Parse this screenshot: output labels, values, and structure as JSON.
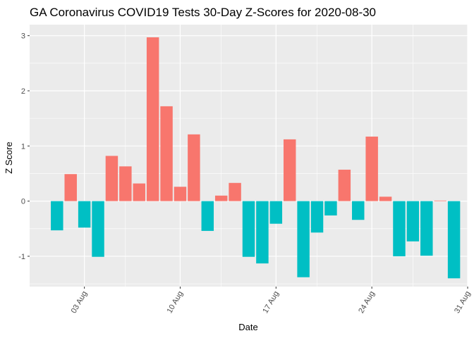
{
  "chart_data": {
    "type": "bar",
    "title": "GA Coronavirus COVID19 Tests 30-Day Z-Scores for 2020-08-30",
    "xlabel": "Date",
    "ylabel": "Z Score",
    "x_dates": [
      "2020-08-01",
      "2020-08-02",
      "2020-08-03",
      "2020-08-04",
      "2020-08-05",
      "2020-08-06",
      "2020-08-07",
      "2020-08-08",
      "2020-08-09",
      "2020-08-10",
      "2020-08-11",
      "2020-08-12",
      "2020-08-13",
      "2020-08-14",
      "2020-08-15",
      "2020-08-16",
      "2020-08-17",
      "2020-08-18",
      "2020-08-19",
      "2020-08-20",
      "2020-08-21",
      "2020-08-22",
      "2020-08-23",
      "2020-08-24",
      "2020-08-25",
      "2020-08-26",
      "2020-08-27",
      "2020-08-28",
      "2020-08-29",
      "2020-08-30"
    ],
    "values": [
      -0.53,
      0.49,
      -0.48,
      -1.01,
      0.82,
      0.63,
      0.32,
      2.97,
      1.72,
      0.26,
      1.21,
      -0.54,
      0.1,
      0.33,
      -1.01,
      -1.13,
      -0.41,
      1.12,
      -1.38,
      -0.57,
      -0.26,
      0.57,
      -0.34,
      1.17,
      0.08,
      -1.0,
      -0.73,
      -0.99,
      0.01,
      -1.4
    ],
    "x_ticks": [
      "03 Aug",
      "10 Aug",
      "17 Aug",
      "24 Aug",
      "31 Aug"
    ],
    "x_tick_dates": [
      "2020-08-03",
      "2020-08-10",
      "2020-08-17",
      "2020-08-24",
      "2020-08-31"
    ],
    "xlim": [
      "2020-07-30",
      "2020-08-31"
    ],
    "y_ticks": [
      -1,
      0,
      1,
      2,
      3
    ],
    "ylim": [
      -1.55,
      3.2
    ],
    "grid": true,
    "legend": "none",
    "colors": {
      "positive": "#F8766D",
      "negative": "#00BFC4",
      "panel": "#EBEBEB",
      "grid": "#FFFFFF"
    }
  }
}
